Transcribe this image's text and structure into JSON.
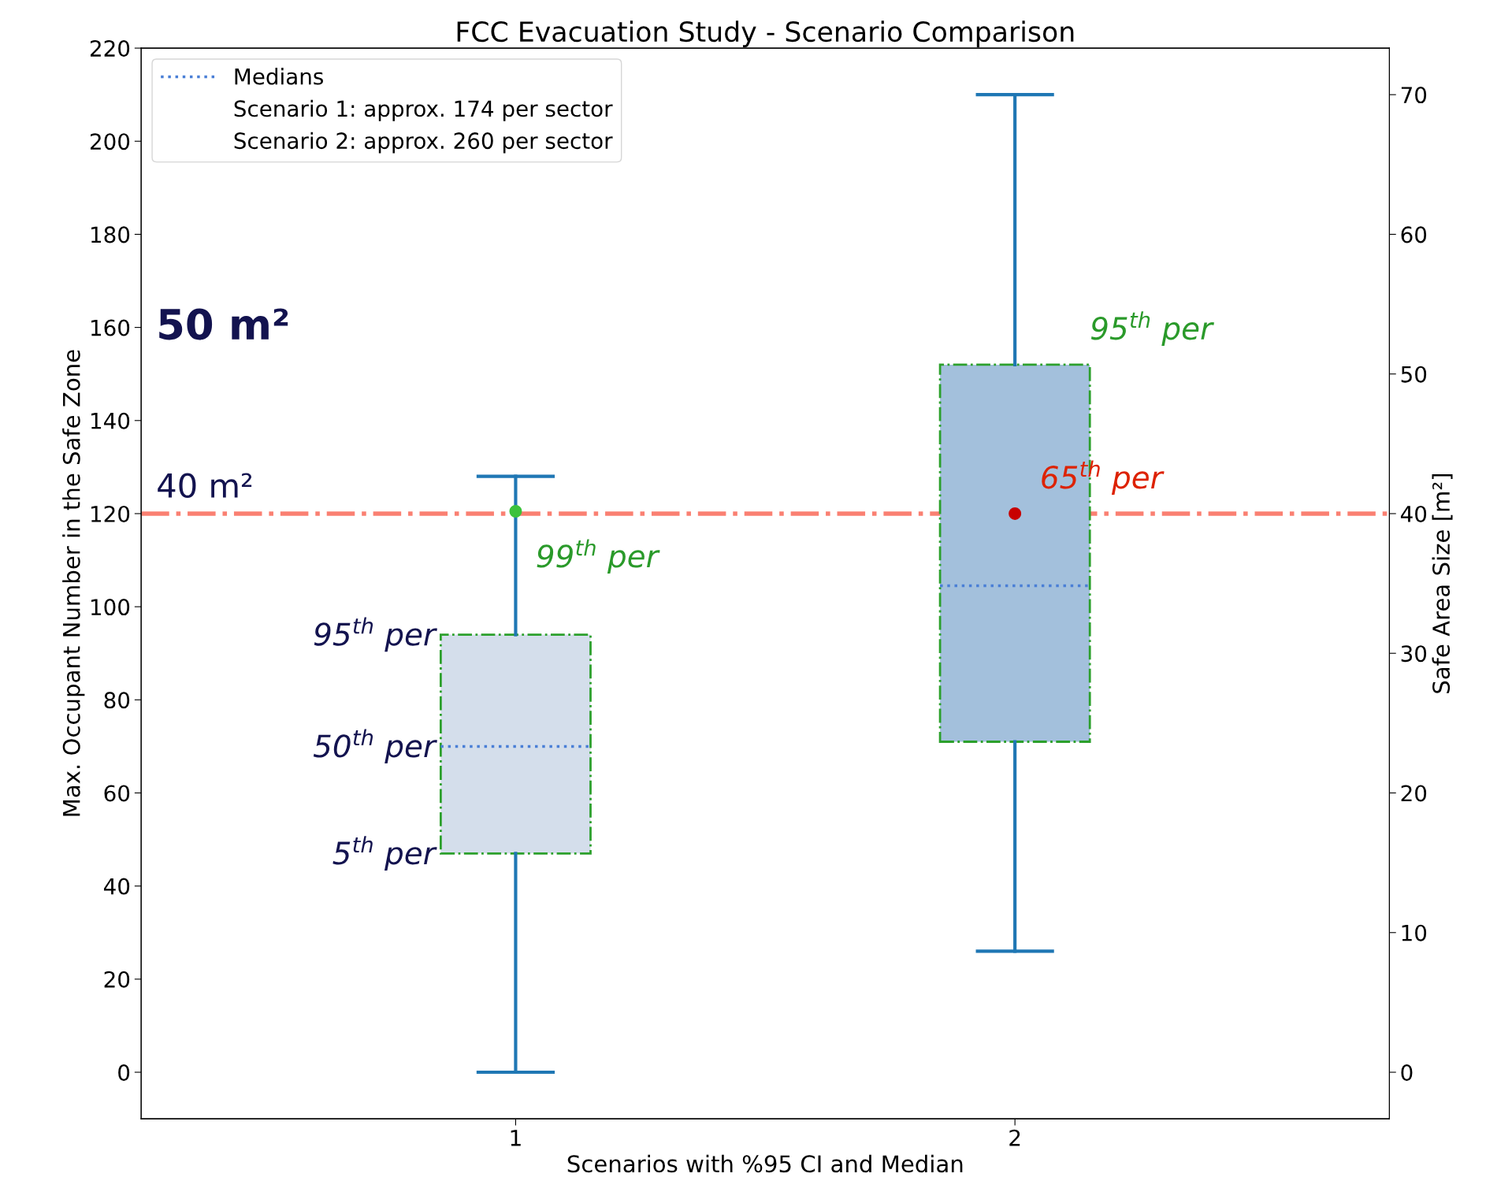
{
  "chart_data": {
    "type": "box",
    "title": "FCC Evacuation Study - Scenario Comparison",
    "subtitle": "50 m²",
    "xlabel": "Scenarios with %95 CI and Median",
    "ylabel": "Max. Occupant Number in the Safe Zone",
    "y2label": "Safe Area Size [m²]",
    "categories": [
      "1",
      "2"
    ],
    "boxes": [
      {
        "low": 0,
        "q1": 47,
        "median": 70,
        "q3": 94,
        "high": 128
      },
      {
        "low": 26,
        "q1": 71,
        "median": 104.5,
        "q3": 152,
        "high": 210
      }
    ],
    "colors": [
      "#d4deeb",
      "#a3c0dc"
    ],
    "series": [
      {
        "type": "scatter",
        "x": [
          "1"
        ],
        "values": [
          120.5
        ],
        "color": "#3cc23c"
      },
      {
        "type": "scatter",
        "x": [
          "2"
        ],
        "values": [
          120
        ],
        "color": "#c80000"
      }
    ],
    "ref_lines": [
      {
        "axis": "y",
        "value": 120,
        "label": "40 m²",
        "color": "#fa8072",
        "line_style": "dashdot"
      }
    ],
    "annotations": [
      "Medians",
      "Scenario 1: approx. 174 per sector",
      "Scenario 2: approx. 260 per sector",
      {
        "text": "99$^{th}$ per",
        "x": "1",
        "y": 120.5
      },
      {
        "text": "95$^{th}$ per",
        "x": "1",
        "y": 94
      },
      {
        "text": "50$^{th}$ per",
        "x": "1",
        "y": 70
      },
      {
        "text": "5$^{th}$ per",
        "x": "1",
        "y": 47
      },
      {
        "text": "95$^{th}$ per",
        "x": "2",
        "y": 152
      },
      {
        "text": "65$^{th}$ per",
        "x": "2",
        "y": 120
      }
    ],
    "ylim": [
      -10,
      220
    ],
    "yticks": [
      0,
      20,
      40,
      60,
      80,
      100,
      120,
      140,
      160,
      180,
      200,
      220
    ],
    "y2lim": [
      -3.333,
      73.333
    ],
    "y2ticks": [
      0,
      10,
      20,
      30,
      40,
      50,
      60,
      70
    ],
    "legend": "top left",
    "grid": false
  }
}
